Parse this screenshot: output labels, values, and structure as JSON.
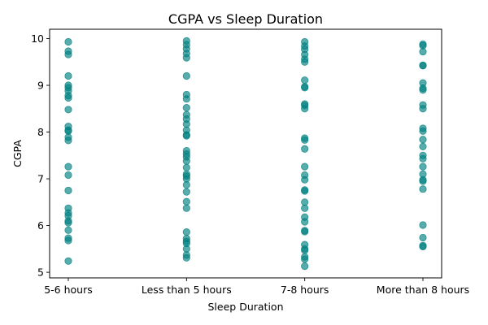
{
  "chart_data": {
    "type": "scatter",
    "title": "CGPA vs Sleep Duration",
    "xlabel": "Sleep Duration",
    "ylabel": "CGPA",
    "categories": [
      "5-6 hours",
      "Less than 5 hours",
      "7-8 hours",
      "More than 8 hours"
    ],
    "ylim": [
      4.88,
      10.2
    ],
    "yticks": [
      5,
      6,
      7,
      8,
      9,
      10
    ],
    "grid": false,
    "marker_color": "#008080",
    "marker_alpha": 0.65,
    "points": [
      {
        "x": "5-6 hours",
        "y": 9.93
      },
      {
        "x": "5-6 hours",
        "y": 9.73
      },
      {
        "x": "5-6 hours",
        "y": 9.66
      },
      {
        "x": "5-6 hours",
        "y": 9.2
      },
      {
        "x": "5-6 hours",
        "y": 9.0
      },
      {
        "x": "5-6 hours",
        "y": 8.95
      },
      {
        "x": "5-6 hours",
        "y": 8.88
      },
      {
        "x": "5-6 hours",
        "y": 8.78
      },
      {
        "x": "5-6 hours",
        "y": 8.73
      },
      {
        "x": "5-6 hours",
        "y": 8.48
      },
      {
        "x": "5-6 hours",
        "y": 8.12
      },
      {
        "x": "5-6 hours",
        "y": 8.04
      },
      {
        "x": "5-6 hours",
        "y": 8.02
      },
      {
        "x": "5-6 hours",
        "y": 7.89
      },
      {
        "x": "5-6 hours",
        "y": 7.82
      },
      {
        "x": "5-6 hours",
        "y": 7.26
      },
      {
        "x": "5-6 hours",
        "y": 7.08
      },
      {
        "x": "5-6 hours",
        "y": 6.75
      },
      {
        "x": "5-6 hours",
        "y": 6.37
      },
      {
        "x": "5-6 hours",
        "y": 6.27
      },
      {
        "x": "5-6 hours",
        "y": 6.21
      },
      {
        "x": "5-6 hours",
        "y": 6.1
      },
      {
        "x": "5-6 hours",
        "y": 6.06
      },
      {
        "x": "5-6 hours",
        "y": 5.9
      },
      {
        "x": "5-6 hours",
        "y": 5.73
      },
      {
        "x": "5-6 hours",
        "y": 5.68
      },
      {
        "x": "5-6 hours",
        "y": 5.24
      },
      {
        "x": "Less than 5 hours",
        "y": 9.95
      },
      {
        "x": "Less than 5 hours",
        "y": 9.87
      },
      {
        "x": "Less than 5 hours",
        "y": 9.78
      },
      {
        "x": "Less than 5 hours",
        "y": 9.68
      },
      {
        "x": "Less than 5 hours",
        "y": 9.59
      },
      {
        "x": "Less than 5 hours",
        "y": 9.2
      },
      {
        "x": "Less than 5 hours",
        "y": 8.8
      },
      {
        "x": "Less than 5 hours",
        "y": 8.71
      },
      {
        "x": "Less than 5 hours",
        "y": 8.52
      },
      {
        "x": "Less than 5 hours",
        "y": 8.37
      },
      {
        "x": "Less than 5 hours",
        "y": 8.28
      },
      {
        "x": "Less than 5 hours",
        "y": 8.17
      },
      {
        "x": "Less than 5 hours",
        "y": 8.04
      },
      {
        "x": "Less than 5 hours",
        "y": 7.94
      },
      {
        "x": "Less than 5 hours",
        "y": 7.92
      },
      {
        "x": "Less than 5 hours",
        "y": 7.6
      },
      {
        "x": "Less than 5 hours",
        "y": 7.53
      },
      {
        "x": "Less than 5 hours",
        "y": 7.47
      },
      {
        "x": "Less than 5 hours",
        "y": 7.38
      },
      {
        "x": "Less than 5 hours",
        "y": 7.24
      },
      {
        "x": "Less than 5 hours",
        "y": 7.1
      },
      {
        "x": "Less than 5 hours",
        "y": 7.06
      },
      {
        "x": "Less than 5 hours",
        "y": 7.0
      },
      {
        "x": "Less than 5 hours",
        "y": 6.87
      },
      {
        "x": "Less than 5 hours",
        "y": 6.72
      },
      {
        "x": "Less than 5 hours",
        "y": 6.51
      },
      {
        "x": "Less than 5 hours",
        "y": 6.37
      },
      {
        "x": "Less than 5 hours",
        "y": 5.86
      },
      {
        "x": "Less than 5 hours",
        "y": 5.72
      },
      {
        "x": "Less than 5 hours",
        "y": 5.66
      },
      {
        "x": "Less than 5 hours",
        "y": 5.62
      },
      {
        "x": "Less than 5 hours",
        "y": 5.5
      },
      {
        "x": "Less than 5 hours",
        "y": 5.37
      },
      {
        "x": "Less than 5 hours",
        "y": 5.31
      },
      {
        "x": "7-8 hours",
        "y": 9.93
      },
      {
        "x": "7-8 hours",
        "y": 9.84
      },
      {
        "x": "7-8 hours",
        "y": 9.77
      },
      {
        "x": "7-8 hours",
        "y": 9.66
      },
      {
        "x": "7-8 hours",
        "y": 9.56
      },
      {
        "x": "7-8 hours",
        "y": 9.5
      },
      {
        "x": "7-8 hours",
        "y": 9.11
      },
      {
        "x": "7-8 hours",
        "y": 8.97
      },
      {
        "x": "7-8 hours",
        "y": 8.95
      },
      {
        "x": "7-8 hours",
        "y": 8.6
      },
      {
        "x": "7-8 hours",
        "y": 8.57
      },
      {
        "x": "7-8 hours",
        "y": 8.5
      },
      {
        "x": "7-8 hours",
        "y": 7.87
      },
      {
        "x": "7-8 hours",
        "y": 7.83
      },
      {
        "x": "7-8 hours",
        "y": 7.64
      },
      {
        "x": "7-8 hours",
        "y": 7.26
      },
      {
        "x": "7-8 hours",
        "y": 7.08
      },
      {
        "x": "7-8 hours",
        "y": 6.98
      },
      {
        "x": "7-8 hours",
        "y": 6.76
      },
      {
        "x": "7-8 hours",
        "y": 6.74
      },
      {
        "x": "7-8 hours",
        "y": 6.5
      },
      {
        "x": "7-8 hours",
        "y": 6.37
      },
      {
        "x": "7-8 hours",
        "y": 6.18
      },
      {
        "x": "7-8 hours",
        "y": 6.08
      },
      {
        "x": "7-8 hours",
        "y": 5.89
      },
      {
        "x": "7-8 hours",
        "y": 5.87
      },
      {
        "x": "7-8 hours",
        "y": 5.59
      },
      {
        "x": "7-8 hours",
        "y": 5.5
      },
      {
        "x": "7-8 hours",
        "y": 5.47
      },
      {
        "x": "7-8 hours",
        "y": 5.33
      },
      {
        "x": "7-8 hours",
        "y": 5.28
      },
      {
        "x": "7-8 hours",
        "y": 5.13
      },
      {
        "x": "More than 8 hours",
        "y": 9.88
      },
      {
        "x": "More than 8 hours",
        "y": 9.85
      },
      {
        "x": "More than 8 hours",
        "y": 9.72
      },
      {
        "x": "More than 8 hours",
        "y": 9.43
      },
      {
        "x": "More than 8 hours",
        "y": 9.42
      },
      {
        "x": "More than 8 hours",
        "y": 9.05
      },
      {
        "x": "More than 8 hours",
        "y": 8.94
      },
      {
        "x": "More than 8 hours",
        "y": 8.9
      },
      {
        "x": "More than 8 hours",
        "y": 8.58
      },
      {
        "x": "More than 8 hours",
        "y": 8.5
      },
      {
        "x": "More than 8 hours",
        "y": 8.08
      },
      {
        "x": "More than 8 hours",
        "y": 8.02
      },
      {
        "x": "More than 8 hours",
        "y": 7.84
      },
      {
        "x": "More than 8 hours",
        "y": 7.69
      },
      {
        "x": "More than 8 hours",
        "y": 7.5
      },
      {
        "x": "More than 8 hours",
        "y": 7.43
      },
      {
        "x": "More than 8 hours",
        "y": 7.26
      },
      {
        "x": "More than 8 hours",
        "y": 7.1
      },
      {
        "x": "More than 8 hours",
        "y": 6.98
      },
      {
        "x": "More than 8 hours",
        "y": 6.95
      },
      {
        "x": "More than 8 hours",
        "y": 6.78
      },
      {
        "x": "More than 8 hours",
        "y": 6.01
      },
      {
        "x": "More than 8 hours",
        "y": 5.74
      },
      {
        "x": "More than 8 hours",
        "y": 5.57
      },
      {
        "x": "More than 8 hours",
        "y": 5.55
      }
    ]
  }
}
